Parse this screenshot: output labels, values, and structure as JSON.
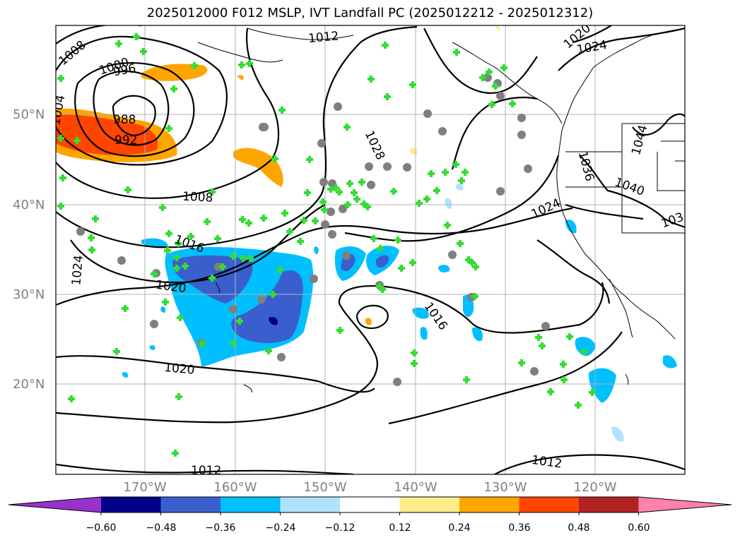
{
  "title": "2025012000 F012 MSLP, IVT Landfall PC (2025012212 - 2025012312)",
  "lat_labels": [
    "50°N",
    "40°N",
    "30°N",
    "20°N"
  ],
  "lon_labels": [
    "170°W",
    "160°W",
    "150°W",
    "140°W",
    "130°W",
    "120°W"
  ],
  "colorbar": {
    "colors": [
      "#9932CC",
      "#00008B",
      "#3A5FCD",
      "#00BFFF",
      "#B0E2FF",
      "#FFFFFF",
      "#FFEC8B",
      "#FFA500",
      "#FF4500",
      "#B22222",
      "#FF82AB"
    ],
    "tick_labels": [
      "−0.60",
      "−0.48",
      "−0.36",
      "−0.24",
      "−0.12",
      "0.12",
      "0.24",
      "0.36",
      "0.48",
      "0.60"
    ]
  },
  "isobar_labels": [
    "1008",
    "1000",
    "996",
    "1004",
    "988",
    "992",
    "1012",
    "1020",
    "1024",
    "1028",
    "1036",
    "1040",
    "1044",
    "103",
    "1008",
    "1016",
    "1024",
    "1020",
    "1016",
    "1024",
    "1020",
    "1012",
    "1012"
  ],
  "marker_colors": {
    "cross": "#33DD33",
    "circle": "#7F7F7F"
  }
}
